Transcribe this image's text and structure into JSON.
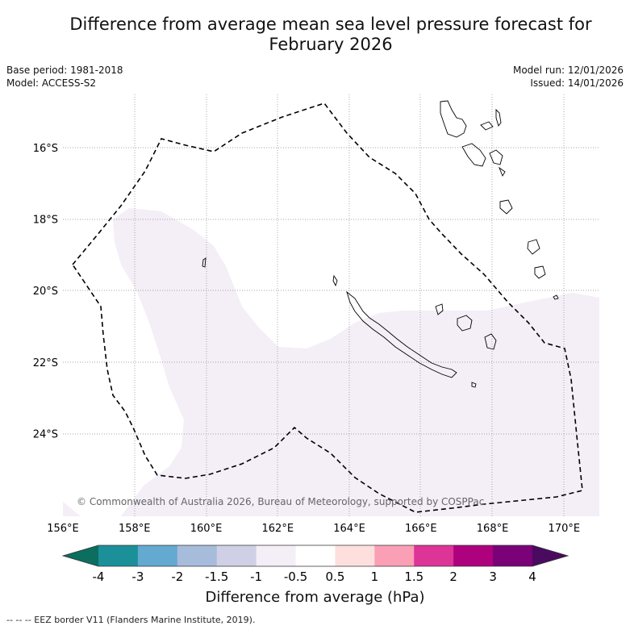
{
  "title_line1": "Difference from average mean sea level pressure forecast for",
  "title_line2": "February 2026",
  "meta_left": {
    "base_period": "Base period: 1981-2018",
    "model": "Model: ACCESS-S2"
  },
  "meta_right": {
    "model_run": "Model run: 12/01/2026",
    "issued": "Issued: 14/01/2026"
  },
  "axes": {
    "lat_labels": [
      {
        "value": -16,
        "text": "16°S"
      },
      {
        "value": -18,
        "text": "18°S"
      },
      {
        "value": -20,
        "text": "20°S"
      },
      {
        "value": -22,
        "text": "22°S"
      },
      {
        "value": -24,
        "text": "24°S"
      }
    ],
    "lon_labels": [
      {
        "value": 156,
        "text": "156°E"
      },
      {
        "value": 158,
        "text": "158°E"
      },
      {
        "value": 160,
        "text": "160°E"
      },
      {
        "value": 162,
        "text": "162°E"
      },
      {
        "value": 164,
        "text": "164°E"
      },
      {
        "value": 166,
        "text": "166°E"
      },
      {
        "value": 168,
        "text": "168°E"
      },
      {
        "value": 170,
        "text": "170°E"
      }
    ]
  },
  "copyright": "© Commonwealth of Australia 2026, Bureau of Meteorology, supported by COSPPac",
  "colorbar": {
    "label": "Difference from average (hPa)",
    "ticks": [
      "-4",
      "-3",
      "-2",
      "-1.5",
      "-1",
      "-0.5",
      "0.5",
      "1",
      "1.5",
      "2",
      "3",
      "4"
    ],
    "low_extend_color": "#0b6e5f",
    "high_extend_color": "#4a0a5f",
    "colors": [
      "#1b9099",
      "#63a9d0",
      "#a7bbdb",
      "#cfd0e6",
      "#f4eef7",
      "#ffffff",
      "#fde0dd",
      "#fa9fb5",
      "#dd3497",
      "#ae017e",
      "#7a0177"
    ]
  },
  "field": {
    "anomaly_range": "-1 to -0.5",
    "fill_color": "#f4eef7"
  },
  "footer": "--  --  -- EEZ border V11 (Flanders Marine Institute, 2019)."
}
